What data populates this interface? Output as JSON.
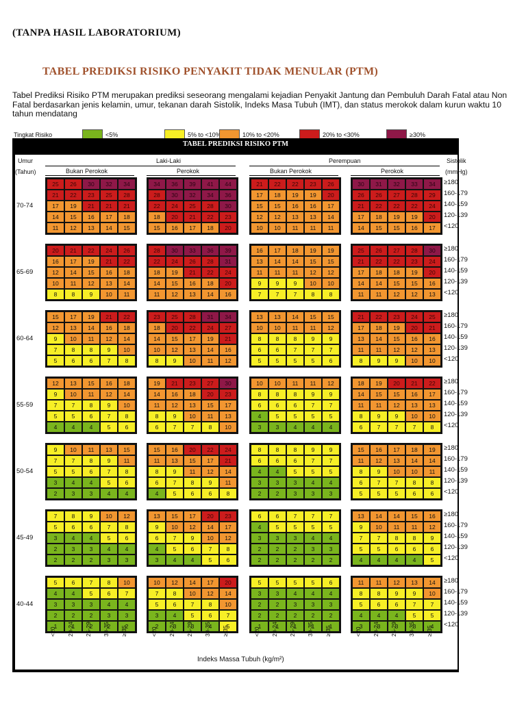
{
  "top_note": "(TANPA HASIL LABORATORIUM)",
  "title": "TABEL PREDIKSI RISIKO PENYAKIT TIDAK MENULAR (PTM)",
  "description": "Tabel Prediksi Risiko PTM merupakan prediksi seseorang mengalami kejadian Penyakit Jantung dan Pembuluh Darah Fatal atau Non Fatal berdasarkan jenis kelamin, umur, tekanan darah Sistolik, Indeks Masa Tubuh (IMT), dan status merokok  dalam kurun waktu 10 tahun mendatang",
  "legend": {
    "label": "Tingkat Risiko",
    "items": [
      {
        "text": "<5%",
        "color": "#7ab51d"
      },
      {
        "text": "5% to <10%",
        "color": "#f7ef26"
      },
      {
        "text": "10% to <20%",
        "color": "#f29630"
      },
      {
        "text": "20% to <30%",
        "color": "#cc1c1c"
      },
      {
        "text": "≥30%",
        "color": "#8f1848"
      }
    ]
  },
  "table": {
    "title": "TABEL PREDIKSI RISIKO PTM",
    "umur_label": "Umur",
    "tahun_label": "(Tahun)",
    "sistolik_label": "Sistolik",
    "mmhg_label": "(mmHg)",
    "male_label": "Laki-Laki",
    "female_label": "Perempuan",
    "nonsmoker_label": "Bukan Perokok",
    "smoker_label": "Perokok",
    "systolic_rows": [
      "≥180",
      "160-179",
      "140-159",
      "120-139",
      "<120"
    ],
    "bmi_columns": [
      "<20",
      "20-24",
      "25-29",
      "30-35",
      "≥ 35"
    ],
    "x_axis_label": "Indeks Massa Tubuh (kg/m²)",
    "age_groups": [
      {
        "label": "70-74",
        "male_nonsmoker": [
          [
            25,
            26,
            30,
            32,
            34
          ],
          [
            21,
            22,
            23,
            25,
            28
          ],
          [
            17,
            19,
            21,
            21,
            21
          ],
          [
            14,
            15,
            16,
            17,
            18
          ],
          [
            11,
            12,
            13,
            14,
            15
          ]
        ],
        "male_smoker": [
          [
            34,
            36,
            39,
            41,
            44
          ],
          [
            28,
            30,
            32,
            34,
            36
          ],
          [
            22,
            24,
            25,
            28,
            30
          ],
          [
            18,
            20,
            21,
            22,
            23
          ],
          [
            15,
            16,
            17,
            18,
            20
          ]
        ],
        "female_nonsmoker": [
          [
            21,
            22,
            22,
            23,
            26
          ],
          [
            17,
            18,
            19,
            19,
            20
          ],
          [
            15,
            15,
            16,
            16,
            17
          ],
          [
            12,
            12,
            13,
            13,
            14
          ],
          [
            10,
            10,
            11,
            11,
            11
          ]
        ],
        "female_smoker": [
          [
            30,
            31,
            32,
            33,
            34
          ],
          [
            26,
            26,
            27,
            28,
            29
          ],
          [
            21,
            22,
            22,
            22,
            24
          ],
          [
            17,
            18,
            19,
            19,
            20
          ],
          [
            14,
            15,
            15,
            16,
            17
          ]
        ]
      },
      {
        "label": "65-69",
        "male_nonsmoker": [
          [
            20,
            21,
            22,
            24,
            26
          ],
          [
            16,
            17,
            19,
            21,
            22
          ],
          [
            12,
            14,
            15,
            16,
            18
          ],
          [
            10,
            11,
            12,
            13,
            14
          ],
          [
            8,
            8,
            9,
            10,
            11
          ]
        ],
        "male_smoker": [
          [
            28,
            30,
            33,
            36,
            39
          ],
          [
            22,
            24,
            26,
            28,
            31
          ],
          [
            18,
            19,
            21,
            22,
            24
          ],
          [
            14,
            15,
            16,
            18,
            20
          ],
          [
            11,
            12,
            13,
            14,
            16
          ]
        ],
        "female_nonsmoker": [
          [
            16,
            17,
            18,
            19,
            19
          ],
          [
            13,
            14,
            14,
            15,
            15
          ],
          [
            11,
            11,
            11,
            12,
            12
          ],
          [
            9,
            9,
            9,
            10,
            10
          ],
          [
            7,
            7,
            7,
            8,
            8
          ]
        ],
        "female_smoker": [
          [
            25,
            26,
            27,
            28,
            30
          ],
          [
            21,
            22,
            22,
            23,
            24
          ],
          [
            17,
            18,
            18,
            19,
            20
          ],
          [
            14,
            14,
            15,
            15,
            16
          ],
          [
            11,
            11,
            12,
            12,
            13
          ]
        ]
      },
      {
        "label": "60-64",
        "male_nonsmoker": [
          [
            15,
            17,
            19,
            21,
            22
          ],
          [
            12,
            13,
            14,
            16,
            18
          ],
          [
            9,
            10,
            11,
            12,
            14
          ],
          [
            7,
            8,
            8,
            9,
            10
          ],
          [
            5,
            6,
            6,
            7,
            8
          ]
        ],
        "male_smoker": [
          [
            23,
            25,
            28,
            31,
            34
          ],
          [
            18,
            20,
            22,
            24,
            27
          ],
          [
            14,
            15,
            17,
            19,
            21
          ],
          [
            10,
            12,
            13,
            14,
            16
          ],
          [
            8,
            9,
            10,
            11,
            12
          ]
        ],
        "female_nonsmoker": [
          [
            13,
            13,
            14,
            15,
            15
          ],
          [
            10,
            10,
            11,
            11,
            12
          ],
          [
            8,
            8,
            8,
            9,
            9
          ],
          [
            6,
            6,
            7,
            7,
            7
          ],
          [
            5,
            5,
            5,
            5,
            6
          ]
        ],
        "female_smoker": [
          [
            21,
            22,
            23,
            24,
            25
          ],
          [
            17,
            18,
            19,
            20,
            21
          ],
          [
            13,
            14,
            15,
            16,
            16
          ],
          [
            11,
            11,
            12,
            12,
            13
          ],
          [
            8,
            9,
            9,
            10,
            10
          ]
        ]
      },
      {
        "label": "55-59",
        "male_nonsmoker": [
          [
            12,
            13,
            15,
            16,
            18
          ],
          [
            9,
            10,
            11,
            12,
            14
          ],
          [
            7,
            7,
            8,
            9,
            10
          ],
          [
            5,
            5,
            6,
            7,
            8
          ],
          [
            4,
            4,
            4,
            5,
            6
          ]
        ],
        "male_smoker": [
          [
            19,
            21,
            23,
            27,
            30
          ],
          [
            14,
            16,
            18,
            20,
            23
          ],
          [
            11,
            12,
            13,
            15,
            17
          ],
          [
            8,
            9,
            10,
            11,
            13
          ],
          [
            6,
            7,
            7,
            8,
            10
          ]
        ],
        "female_nonsmoker": [
          [
            10,
            10,
            11,
            11,
            12
          ],
          [
            8,
            8,
            8,
            9,
            9
          ],
          [
            6,
            6,
            6,
            7,
            7
          ],
          [
            4,
            5,
            5,
            5,
            5
          ],
          [
            3,
            3,
            4,
            4,
            4
          ]
        ],
        "female_smoker": [
          [
            18,
            19,
            20,
            21,
            22
          ],
          [
            14,
            15,
            15,
            16,
            17
          ],
          [
            11,
            11,
            12,
            13,
            13
          ],
          [
            8,
            9,
            9,
            10,
            10
          ],
          [
            6,
            7,
            7,
            7,
            8
          ]
        ]
      },
      {
        "label": "50-54",
        "male_nonsmoker": [
          [
            9,
            10,
            11,
            13,
            15
          ],
          [
            7,
            7,
            8,
            9,
            11
          ],
          [
            5,
            5,
            6,
            7,
            8
          ],
          [
            3,
            4,
            4,
            5,
            6
          ],
          [
            2,
            3,
            3,
            4,
            4
          ]
        ],
        "male_smoker": [
          [
            15,
            16,
            20,
            22,
            24
          ],
          [
            11,
            13,
            15,
            17,
            21
          ],
          [
            8,
            9,
            11,
            12,
            14
          ],
          [
            6,
            7,
            8,
            9,
            11
          ],
          [
            4,
            5,
            6,
            6,
            8
          ]
        ],
        "female_nonsmoker": [
          [
            8,
            8,
            8,
            9,
            9
          ],
          [
            6,
            6,
            6,
            7,
            7
          ],
          [
            4,
            4,
            5,
            5,
            5
          ],
          [
            3,
            3,
            3,
            4,
            4
          ],
          [
            2,
            2,
            3,
            3,
            3
          ]
        ],
        "female_smoker": [
          [
            15,
            16,
            17,
            18,
            19
          ],
          [
            11,
            12,
            13,
            14,
            14
          ],
          [
            8,
            9,
            10,
            10,
            11
          ],
          [
            6,
            7,
            7,
            8,
            8
          ],
          [
            5,
            5,
            5,
            6,
            6
          ]
        ]
      },
      {
        "label": "45-49",
        "male_nonsmoker": [
          [
            7,
            8,
            9,
            10,
            12
          ],
          [
            5,
            6,
            6,
            7,
            8
          ],
          [
            3,
            4,
            4,
            5,
            6
          ],
          [
            2,
            3,
            3,
            4,
            4
          ],
          [
            2,
            2,
            2,
            3,
            3
          ]
        ],
        "male_smoker": [
          [
            13,
            15,
            17,
            20,
            23
          ],
          [
            9,
            10,
            12,
            14,
            17
          ],
          [
            6,
            7,
            9,
            10,
            12
          ],
          [
            4,
            5,
            6,
            7,
            8
          ],
          [
            3,
            4,
            4,
            5,
            6
          ]
        ],
        "female_nonsmoker": [
          [
            6,
            6,
            7,
            7,
            7
          ],
          [
            4,
            5,
            5,
            5,
            5
          ],
          [
            3,
            3,
            3,
            4,
            4
          ],
          [
            2,
            2,
            2,
            3,
            3
          ],
          [
            2,
            2,
            2,
            2,
            2
          ]
        ],
        "female_smoker": [
          [
            13,
            14,
            14,
            15,
            16
          ],
          [
            9,
            10,
            11,
            11,
            12
          ],
          [
            7,
            7,
            8,
            8,
            9
          ],
          [
            5,
            5,
            6,
            6,
            6
          ],
          [
            4,
            4,
            4,
            4,
            5
          ]
        ]
      },
      {
        "label": "40-44",
        "male_nonsmoker": [
          [
            5,
            6,
            7,
            8,
            10
          ],
          [
            4,
            4,
            5,
            6,
            7
          ],
          [
            3,
            3,
            3,
            4,
            4
          ],
          [
            2,
            2,
            2,
            3,
            3
          ],
          [
            1,
            1,
            2,
            2,
            2
          ]
        ],
        "male_smoker": [
          [
            10,
            12,
            14,
            17,
            20
          ],
          [
            7,
            8,
            10,
            12,
            14
          ],
          [
            5,
            6,
            7,
            8,
            10
          ],
          [
            3,
            4,
            5,
            6,
            7
          ],
          [
            2,
            3,
            3,
            4,
            5
          ]
        ],
        "female_nonsmoker": [
          [
            5,
            5,
            5,
            5,
            6
          ],
          [
            3,
            3,
            4,
            4,
            4
          ],
          [
            2,
            2,
            3,
            3,
            3
          ],
          [
            2,
            2,
            2,
            2,
            2
          ],
          [
            1,
            1,
            1,
            1,
            1
          ]
        ],
        "female_smoker": [
          [
            11,
            11,
            12,
            13,
            14
          ],
          [
            8,
            8,
            9,
            9,
            10
          ],
          [
            5,
            6,
            6,
            7,
            7
          ],
          [
            4,
            4,
            4,
            5,
            5
          ],
          [
            3,
            3,
            3,
            3,
            4
          ]
        ]
      }
    ]
  }
}
